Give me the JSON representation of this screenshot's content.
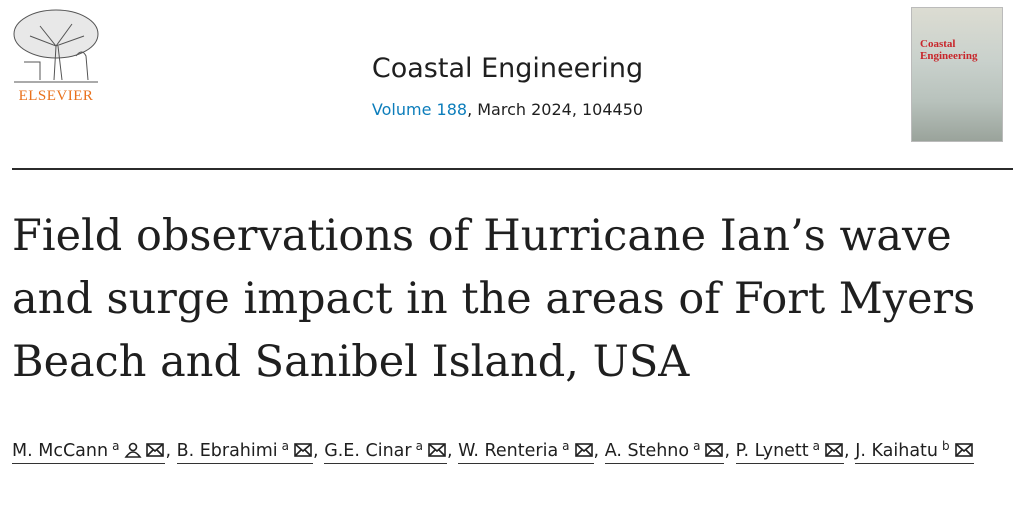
{
  "publisher": "ELSEVIER",
  "journal": {
    "name": "Coastal Engineering",
    "volume": "Volume 188",
    "issue_info": ", March 2024, 104450"
  },
  "cover": {
    "title": "Coastal Engineering"
  },
  "article": {
    "title": "Field observations of Hurricane Ian’s wave and surge impact in the areas of Fort Myers Beach and Sanibel Island, USA"
  },
  "separator": ",",
  "authors": [
    {
      "name": "M. McCann",
      "affiliation": "a"
    },
    {
      "name": "B. Ebrahimi",
      "affiliation": "a"
    },
    {
      "name": "G.E. Cinar",
      "affiliation": "a"
    },
    {
      "name": "W. Renteria",
      "affiliation": "a"
    },
    {
      "name": "A. Stehno",
      "affiliation": "a"
    },
    {
      "name": "P. Lynett",
      "affiliation": "a"
    },
    {
      "name": "J. Kaihatu",
      "affiliation": "b"
    }
  ]
}
